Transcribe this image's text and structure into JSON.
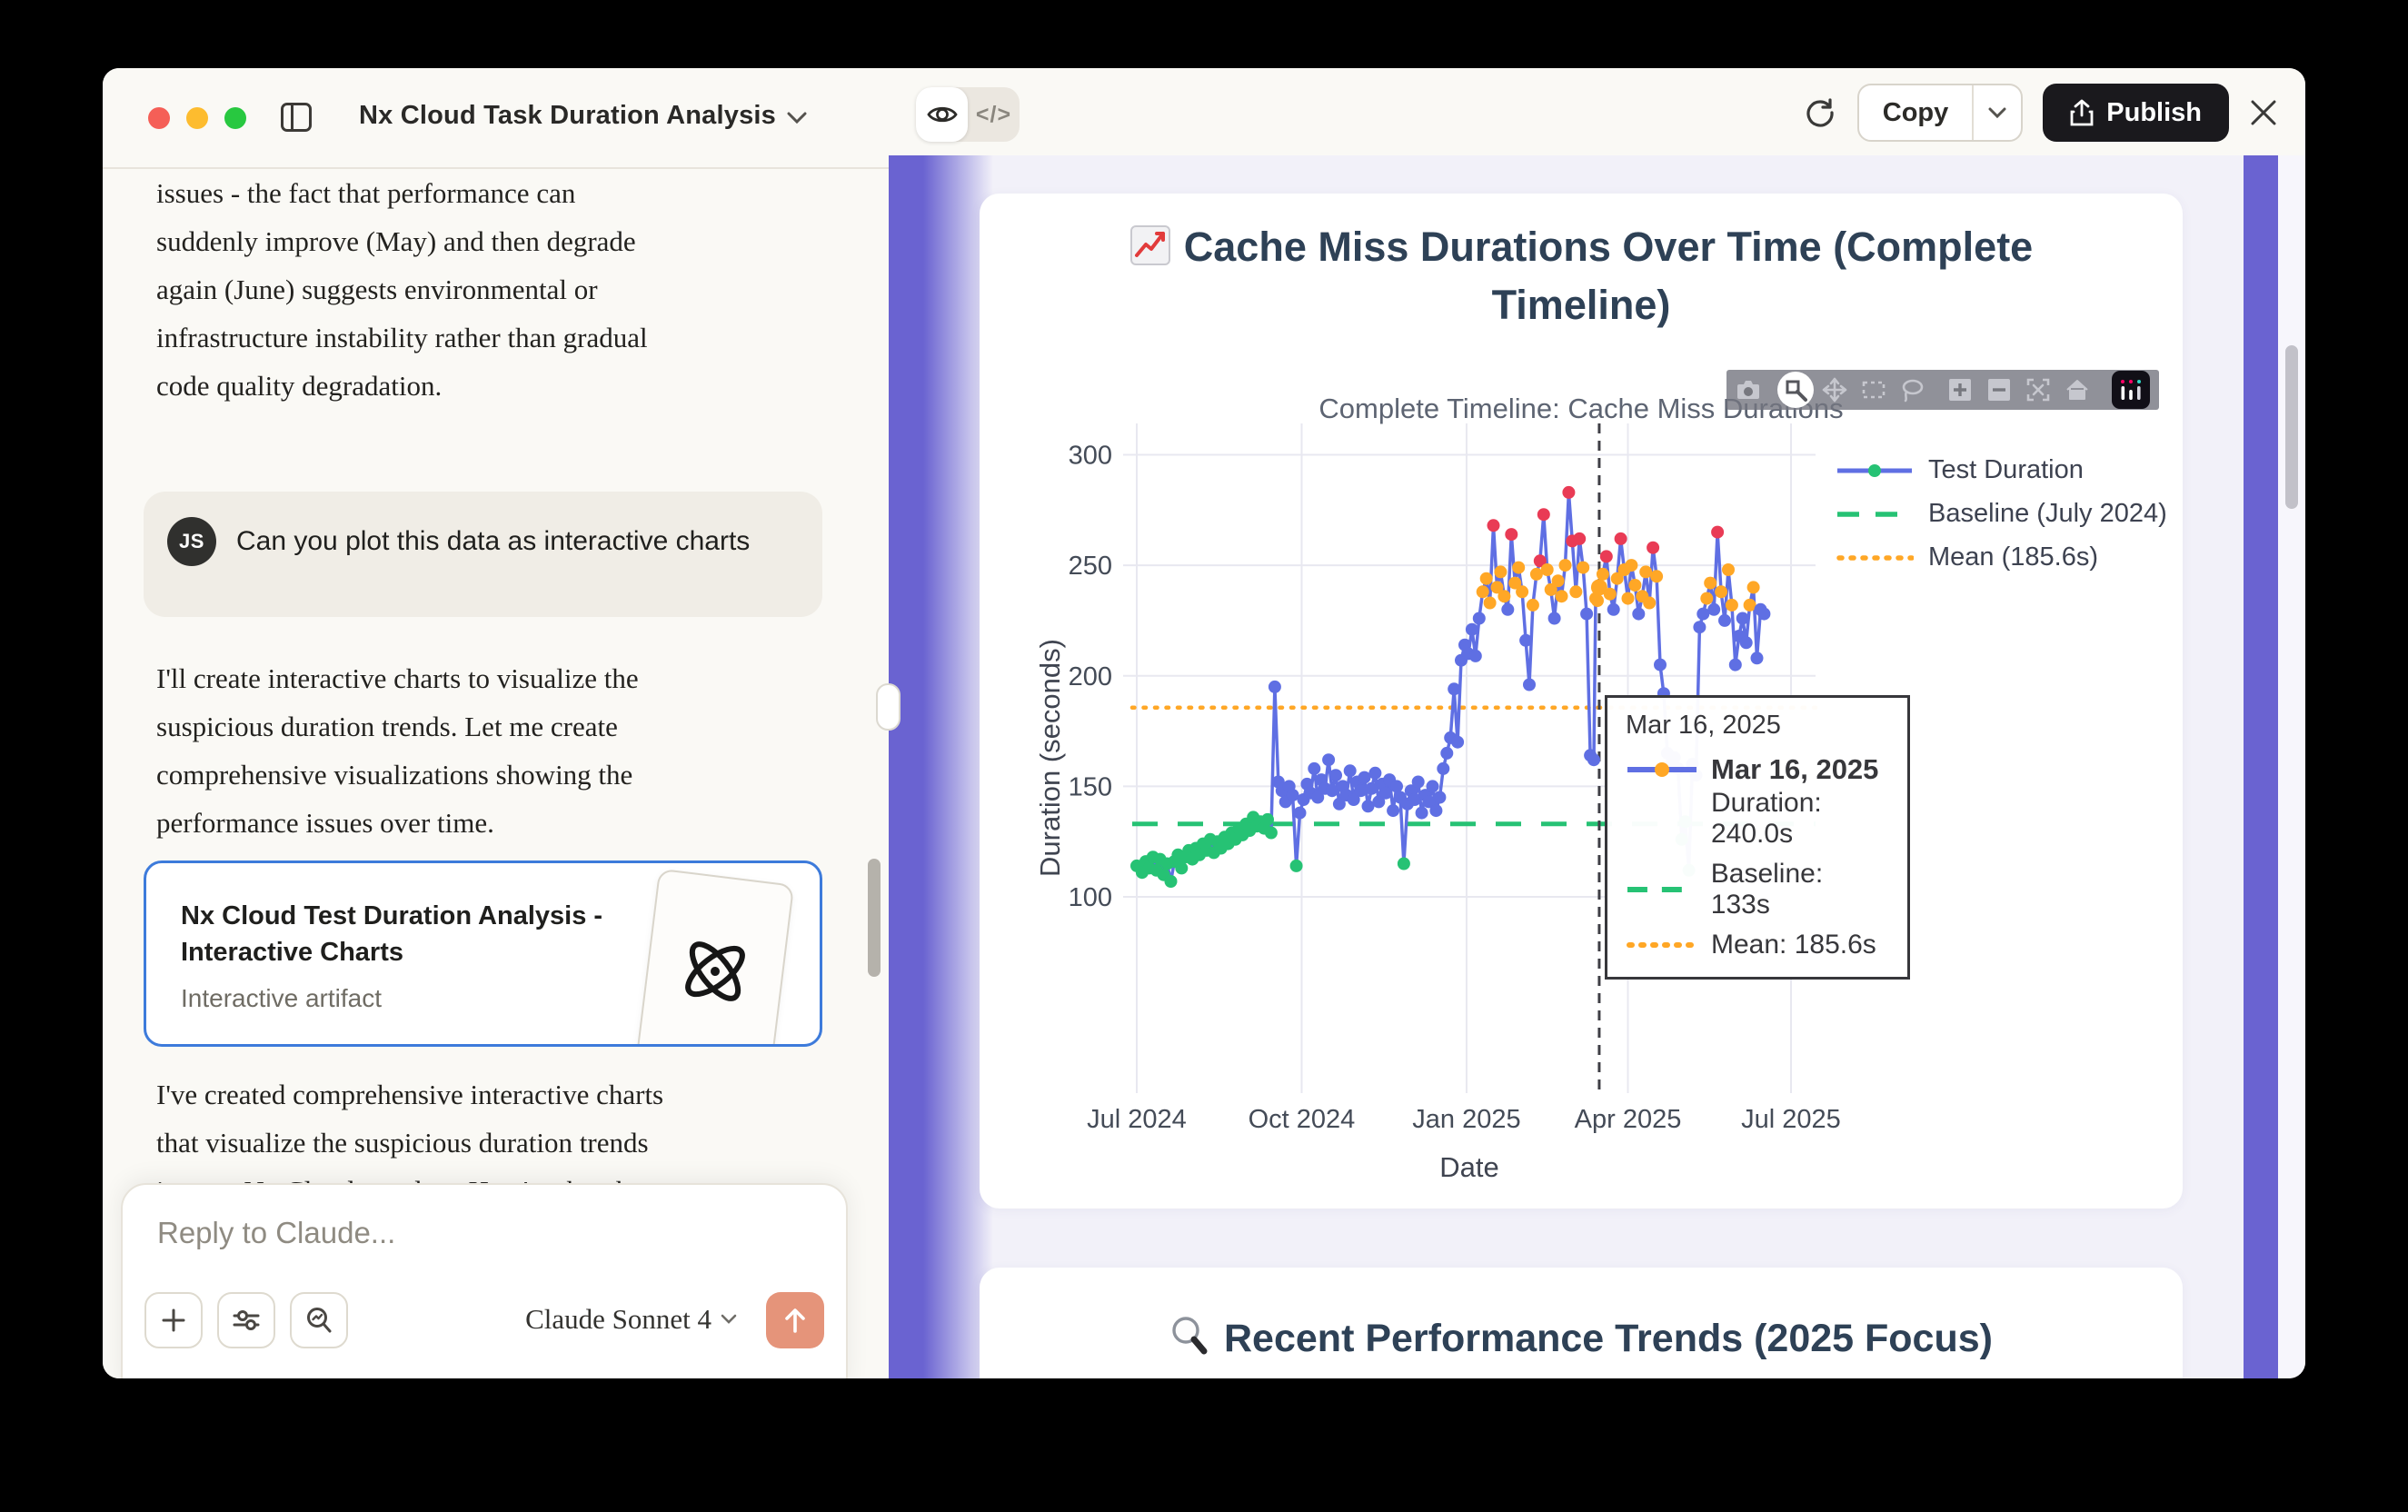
{
  "window": {
    "title": "Nx Cloud Task Duration Analysis"
  },
  "chat": {
    "paragraph_top": {
      "l0": "issues - the fact that performance can",
      "l1": "suddenly improve (May) and then degrade",
      "l2": "again (June) suggests environmental or",
      "l3": "infrastructure instability rather than gradual",
      "l4": "code quality degradation."
    },
    "user_message": {
      "avatar": "JS",
      "text": "Can you plot this data as interactive charts"
    },
    "paragraph_mid": {
      "l0": "I'll create interactive charts to visualize the",
      "l1": "suspicious duration trends. Let me create",
      "l2": "comprehensive visualizations showing the",
      "l3": "performance issues over time."
    },
    "artifact_card": {
      "title": "Nx Cloud Test Duration Analysis - Interactive Charts",
      "subtitle": "Interactive artifact"
    },
    "paragraph_bottom": {
      "l0": "I've created comprehensive interactive charts",
      "l1": "that visualize the suspicious duration trends",
      "l2": "in your Nx Cloud test data. Here's what the"
    },
    "composer": {
      "placeholder": "Reply to Claude...",
      "model": "Claude Sonnet 4",
      "send_color": "#e5947a"
    }
  },
  "toolbar": {
    "code_label": "</>",
    "copy_label": "Copy",
    "publish_label": "Publish"
  },
  "artifact": {
    "accent_color": "#6a63d1",
    "bottom_card": {
      "title": "Recent Performance Trends (2025 Focus)"
    }
  },
  "chart_data": {
    "type": "line",
    "title_line1": "Cache Miss Durations Over Time (Complete",
    "title_line2": "Timeline)",
    "subtitle": "Complete Timeline: Cache Miss Durations",
    "xlabel": "Date",
    "ylabel": "Duration (seconds)",
    "ylim": [
      100,
      300
    ],
    "yticks": [
      100,
      150,
      200,
      250,
      300
    ],
    "xticks": [
      {
        "label": "Jul 2024",
        "day": 0
      },
      {
        "label": "Oct 2024",
        "day": 92
      },
      {
        "label": "Jan 2025",
        "day": 184
      },
      {
        "label": "Apr 2025",
        "day": 274
      },
      {
        "label": "Jul 2025",
        "day": 365
      }
    ],
    "series_label": "Test Duration",
    "baseline": {
      "label": "Baseline (July 2024)",
      "value": 133,
      "color": "#26c274"
    },
    "mean": {
      "label": "Mean (185.6s)",
      "value": 185.6,
      "color": "#ffa726"
    },
    "line_color": "#5f6fe3",
    "marker_rules": {
      "green_below": 137,
      "orange_from": 232,
      "red_from": 252,
      "green": "#26c274",
      "purple": "#5f6fe3",
      "orange": "#ffa726",
      "red": "#e93b55"
    },
    "spike_day": 258,
    "hover_point": {
      "day": 258,
      "value": 240
    },
    "tooltip": {
      "header": "Mar 16, 2025",
      "date_bold": "Mar 16, 2025",
      "duration": "Duration: 240.0s",
      "baseline": "Baseline: 133s",
      "mean": "Mean: 185.6s"
    },
    "x_unit": "days since 2024-07-01",
    "points": [
      [
        0,
        114
      ],
      [
        3,
        111
      ],
      [
        5,
        116
      ],
      [
        7,
        113
      ],
      [
        9,
        118
      ],
      [
        11,
        112
      ],
      [
        13,
        117
      ],
      [
        15,
        110
      ],
      [
        17,
        115
      ],
      [
        19,
        107
      ],
      [
        21,
        116
      ],
      [
        23,
        119
      ],
      [
        25,
        113
      ],
      [
        27,
        118
      ],
      [
        29,
        121
      ],
      [
        31,
        117
      ],
      [
        33,
        122
      ],
      [
        35,
        119
      ],
      [
        37,
        124
      ],
      [
        39,
        121
      ],
      [
        41,
        126
      ],
      [
        43,
        120
      ],
      [
        45,
        125
      ],
      [
        47,
        122
      ],
      [
        49,
        127
      ],
      [
        51,
        124
      ],
      [
        53,
        129
      ],
      [
        55,
        126
      ],
      [
        57,
        131
      ],
      [
        59,
        128
      ],
      [
        61,
        133
      ],
      [
        63,
        130
      ],
      [
        65,
        136
      ],
      [
        67,
        132
      ],
      [
        69,
        134
      ],
      [
        71,
        131
      ],
      [
        73,
        135
      ],
      [
        75,
        129
      ],
      [
        77,
        195
      ],
      [
        79,
        152
      ],
      [
        81,
        148
      ],
      [
        83,
        143
      ],
      [
        85,
        150
      ],
      [
        87,
        146
      ],
      [
        89,
        114
      ],
      [
        91,
        138
      ],
      [
        93,
        144
      ],
      [
        95,
        151
      ],
      [
        97,
        147
      ],
      [
        99,
        158
      ],
      [
        101,
        145
      ],
      [
        103,
        153
      ],
      [
        105,
        149
      ],
      [
        107,
        162
      ],
      [
        109,
        148
      ],
      [
        111,
        155
      ],
      [
        113,
        142
      ],
      [
        115,
        150
      ],
      [
        117,
        146
      ],
      [
        119,
        157
      ],
      [
        121,
        144
      ],
      [
        123,
        152
      ],
      [
        125,
        148
      ],
      [
        127,
        154
      ],
      [
        129,
        141
      ],
      [
        131,
        149
      ],
      [
        133,
        156
      ],
      [
        135,
        143
      ],
      [
        137,
        151
      ],
      [
        139,
        147
      ],
      [
        141,
        153
      ],
      [
        143,
        139
      ],
      [
        145,
        150
      ],
      [
        147,
        145
      ],
      [
        149,
        115
      ],
      [
        151,
        142
      ],
      [
        153,
        148
      ],
      [
        155,
        144
      ],
      [
        157,
        152
      ],
      [
        159,
        138
      ],
      [
        161,
        146
      ],
      [
        163,
        143
      ],
      [
        165,
        150
      ],
      [
        167,
        139
      ],
      [
        169,
        145
      ],
      [
        171,
        158
      ],
      [
        173,
        165
      ],
      [
        175,
        172
      ],
      [
        177,
        194
      ],
      [
        179,
        170
      ],
      [
        181,
        207
      ],
      [
        183,
        214
      ],
      [
        185,
        210
      ],
      [
        187,
        221
      ],
      [
        189,
        209
      ],
      [
        191,
        226
      ],
      [
        193,
        238
      ],
      [
        195,
        244
      ],
      [
        197,
        233
      ],
      [
        199,
        268
      ],
      [
        201,
        240
      ],
      [
        203,
        247
      ],
      [
        205,
        236
      ],
      [
        207,
        230
      ],
      [
        209,
        264
      ],
      [
        211,
        242
      ],
      [
        213,
        249
      ],
      [
        215,
        238
      ],
      [
        217,
        216
      ],
      [
        219,
        196
      ],
      [
        221,
        232
      ],
      [
        223,
        246
      ],
      [
        225,
        252
      ],
      [
        227,
        273
      ],
      [
        229,
        248
      ],
      [
        231,
        239
      ],
      [
        233,
        226
      ],
      [
        235,
        243
      ],
      [
        237,
        236
      ],
      [
        239,
        250
      ],
      [
        241,
        283
      ],
      [
        243,
        261
      ],
      [
        245,
        238
      ],
      [
        247,
        262
      ],
      [
        249,
        249
      ],
      [
        251,
        228
      ],
      [
        253,
        164
      ],
      [
        255,
        162
      ],
      [
        256,
        235
      ],
      [
        257,
        234
      ],
      [
        258,
        240
      ],
      [
        260,
        246
      ],
      [
        262,
        254
      ],
      [
        264,
        237
      ],
      [
        266,
        230
      ],
      [
        268,
        244
      ],
      [
        270,
        262
      ],
      [
        272,
        248
      ],
      [
        274,
        235
      ],
      [
        276,
        250
      ],
      [
        278,
        241
      ],
      [
        280,
        228
      ],
      [
        282,
        236
      ],
      [
        284,
        247
      ],
      [
        286,
        233
      ],
      [
        288,
        258
      ],
      [
        290,
        245
      ],
      [
        292,
        205
      ],
      [
        294,
        192
      ],
      [
        296,
        165
      ],
      [
        298,
        160
      ],
      [
        300,
        163
      ],
      [
        302,
        158
      ],
      [
        304,
        126
      ],
      [
        306,
        134
      ],
      [
        308,
        112
      ],
      [
        310,
        160
      ],
      [
        312,
        155
      ],
      [
        314,
        222
      ],
      [
        316,
        228
      ],
      [
        318,
        235
      ],
      [
        320,
        242
      ],
      [
        322,
        230
      ],
      [
        324,
        265
      ],
      [
        326,
        238
      ],
      [
        328,
        225
      ],
      [
        330,
        248
      ],
      [
        332,
        232
      ],
      [
        334,
        205
      ],
      [
        336,
        218
      ],
      [
        338,
        226
      ],
      [
        340,
        215
      ],
      [
        342,
        232
      ],
      [
        344,
        240
      ],
      [
        346,
        208
      ],
      [
        348,
        230
      ],
      [
        350,
        228
      ]
    ]
  }
}
